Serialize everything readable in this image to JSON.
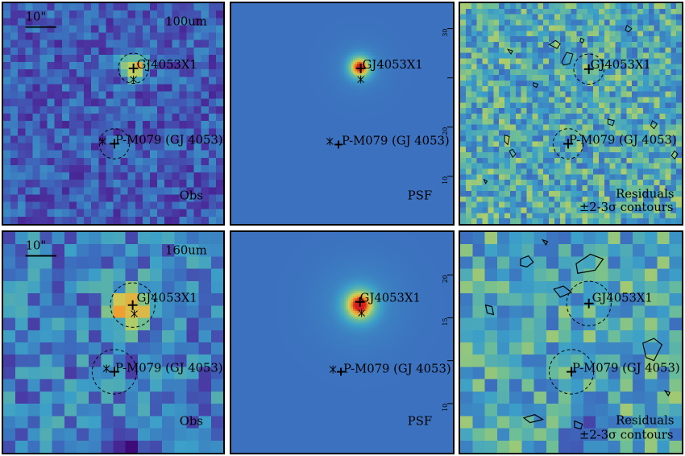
{
  "rows": [
    {
      "band": "100um",
      "panels": [
        {
          "kind": "obs",
          "caption": "Obs",
          "scalebar": "10\"",
          "band_label": "100um",
          "sources": [
            {
              "label": "GJ4053X1"
            },
            {
              "label": "P-M079 (GJ 4053)"
            }
          ]
        },
        {
          "kind": "psf",
          "caption": "PSF",
          "sources": [
            {
              "label": "GJ4053X1"
            },
            {
              "label": "P-M079 (GJ 4053)"
            }
          ],
          "y_ticks": [
            "30",
            "20",
            "10"
          ]
        },
        {
          "kind": "res",
          "caption": "Residuals",
          "caption2": "±2-3σ contours",
          "sources": [
            {
              "label": "GJ4053X1"
            },
            {
              "label": "P-M079 (GJ 4053)"
            }
          ]
        }
      ]
    },
    {
      "band": "160um",
      "panels": [
        {
          "kind": "obs",
          "caption": "Obs",
          "scalebar": "10\"",
          "band_label": "160um",
          "sources": [
            {
              "label": "GJ4053X1"
            },
            {
              "label": "P-M079 (GJ 4053)"
            }
          ]
        },
        {
          "kind": "psf",
          "caption": "PSF",
          "sources": [
            {
              "label": "GJ4053X1"
            },
            {
              "label": "P-M079 (GJ 4053)"
            }
          ],
          "y_ticks": [
            "20",
            "15",
            "10"
          ]
        },
        {
          "kind": "res",
          "caption": "Residuals",
          "caption2": "±2-3σ contours",
          "sources": [
            {
              "label": "GJ4053X1"
            },
            {
              "label": "P-M079 (GJ 4053)"
            }
          ]
        }
      ]
    }
  ]
}
